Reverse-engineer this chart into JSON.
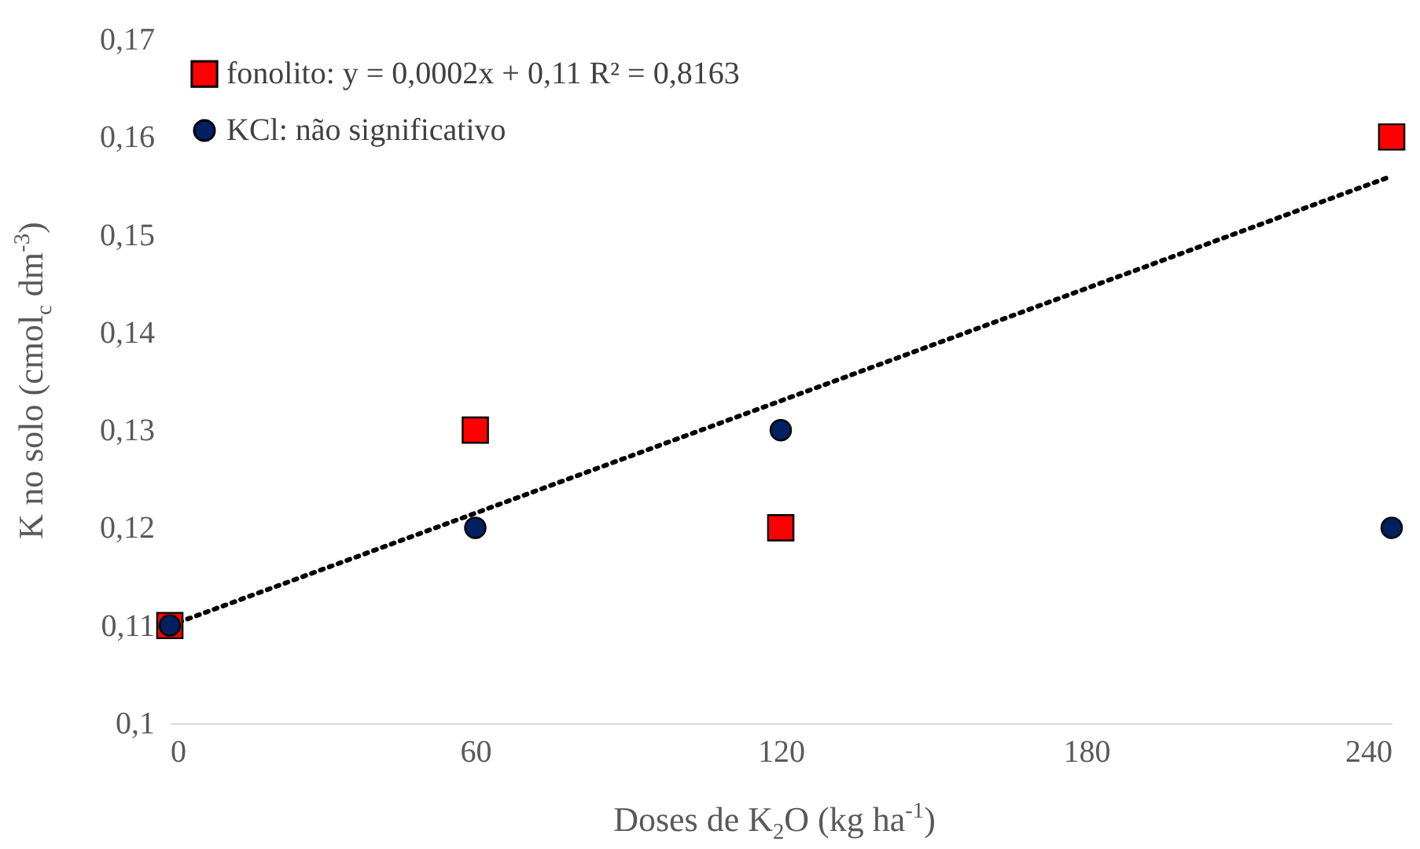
{
  "chart_data": {
    "type": "scatter",
    "xlabel": "Doses de K$_{2}$O (kg ha$^{-1}$)",
    "ylabel": "K no solo (cmol$_{c}$ dm$^{-3}$)",
    "x": [
      0,
      60,
      120,
      240
    ],
    "series": [
      {
        "name": "fonolito: y = 0,0002x + 0,11 R² = 0,8163",
        "color": "#ff0000",
        "marker": "square",
        "values": [
          0.11,
          0.13,
          0.12,
          0.16
        ]
      },
      {
        "name": "KCl: não significativo",
        "color": "#002060",
        "marker": "circle",
        "values": [
          0.11,
          0.12,
          0.13,
          0.12
        ]
      },
      {
        "type": "line",
        "color": "#000000",
        "line_style": "dotted",
        "marker": "none",
        "x": [
          0,
          240
        ],
        "values": [
          0.11,
          0.156
        ]
      }
    ],
    "xlim": [
      0,
      240
    ],
    "xticks": [
      0,
      60,
      120,
      180,
      240
    ],
    "ylim": [
      0.1,
      0.17
    ],
    "yticks": [
      {
        "value": 0.1,
        "label": "0,1"
      },
      {
        "value": 0.11,
        "label": "0,11"
      },
      {
        "value": 0.12,
        "label": "0,12"
      },
      {
        "value": 0.13,
        "label": "0,13"
      },
      {
        "value": 0.14,
        "label": "0,14"
      },
      {
        "value": 0.15,
        "label": "0,15"
      },
      {
        "value": 0.16,
        "label": "0,16"
      },
      {
        "value": 0.17,
        "label": "0,17"
      }
    ],
    "grid": false,
    "legend": "top left"
  }
}
